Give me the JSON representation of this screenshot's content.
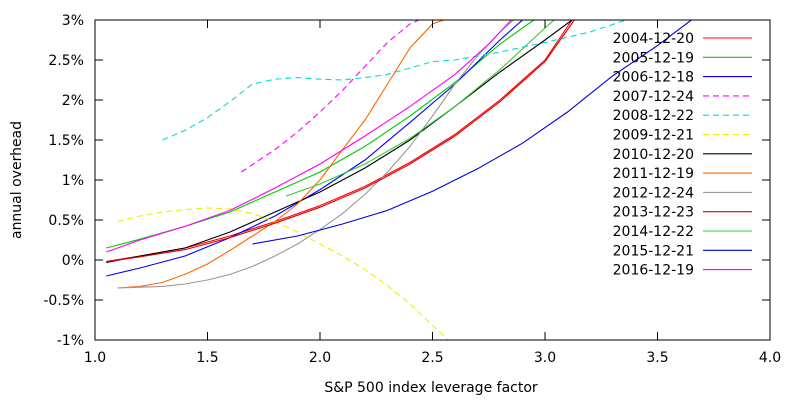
{
  "chart_data": {
    "type": "line",
    "title": "",
    "xlabel": "S&P 500 index leverage factor",
    "ylabel": "annual overhead",
    "xlim": [
      1.0,
      4.0
    ],
    "ylim": [
      -1,
      3
    ],
    "grid": false,
    "legend_position": "top-right",
    "x_ticks": [
      {
        "value": 1.0,
        "label": "1.0"
      },
      {
        "value": 1.5,
        "label": "1.5"
      },
      {
        "value": 2.0,
        "label": "2.0"
      },
      {
        "value": 2.5,
        "label": "2.5"
      },
      {
        "value": 3.0,
        "label": "3.0"
      },
      {
        "value": 3.5,
        "label": "3.5"
      },
      {
        "value": 4.0,
        "label": "4.0"
      }
    ],
    "y_ticks": [
      {
        "value": -1,
        "label": "-1%"
      },
      {
        "value": -0.5,
        "label": "-0.5%"
      },
      {
        "value": 0,
        "label": "0%"
      },
      {
        "value": 0.5,
        "label": "0.5%"
      },
      {
        "value": 1,
        "label": "1%"
      },
      {
        "value": 1.5,
        "label": "1.5%"
      },
      {
        "value": 2,
        "label": "2%"
      },
      {
        "value": 2.5,
        "label": "2.5%"
      },
      {
        "value": 3,
        "label": "3%"
      }
    ],
    "series": [
      {
        "name": "2004-12-20",
        "color": "#ff0000",
        "dash": "solid",
        "x": [
          1.05,
          1.2,
          1.4,
          1.6,
          1.8,
          2.0,
          2.2,
          2.4,
          2.6,
          2.8,
          3.0,
          3.12
        ],
        "y": [
          -0.02,
          0.05,
          0.15,
          0.3,
          0.48,
          0.68,
          0.92,
          1.22,
          1.57,
          2.0,
          2.5,
          3.0
        ]
      },
      {
        "name": "2005-12-19",
        "color": "#00cc00",
        "dash": "solid",
        "x": [
          1.05,
          1.2,
          1.4,
          1.6,
          1.8,
          2.0,
          2.2,
          2.4,
          2.6,
          2.8,
          2.95
        ],
        "y": [
          0.15,
          0.26,
          0.42,
          0.6,
          0.85,
          1.1,
          1.42,
          1.8,
          2.22,
          2.7,
          3.0
        ]
      },
      {
        "name": "2006-12-18",
        "color": "#0000ff",
        "dash": "solid",
        "x": [
          1.05,
          1.2,
          1.4,
          1.6,
          1.8,
          2.0,
          2.2,
          2.4,
          2.6,
          2.8,
          2.9
        ],
        "y": [
          -0.2,
          -0.1,
          0.05,
          0.28,
          0.55,
          0.88,
          1.25,
          1.72,
          2.2,
          2.75,
          3.0
        ]
      },
      {
        "name": "2007-12-24",
        "color": "#ff00ff",
        "dash": "dashed",
        "x": [
          1.65,
          1.8,
          1.9,
          2.0,
          2.1,
          2.2,
          2.3,
          2.4,
          2.44
        ],
        "y": [
          1.1,
          1.38,
          1.6,
          1.85,
          2.12,
          2.42,
          2.72,
          2.95,
          3.0
        ]
      },
      {
        "name": "2008-12-22",
        "color": "#00dddd",
        "dash": "dashed",
        "x": [
          1.3,
          1.4,
          1.5,
          1.6,
          1.7,
          1.8,
          1.9,
          2.0,
          2.1,
          2.2,
          2.3,
          2.4,
          2.5,
          2.6,
          2.8,
          3.0,
          3.2,
          3.36
        ],
        "y": [
          1.5,
          1.62,
          1.78,
          1.98,
          2.2,
          2.26,
          2.28,
          2.26,
          2.25,
          2.28,
          2.32,
          2.4,
          2.48,
          2.5,
          2.6,
          2.72,
          2.85,
          3.0
        ]
      },
      {
        "name": "2009-12-21",
        "color": "#eeee00",
        "dash": "dashed",
        "x": [
          1.1,
          1.2,
          1.3,
          1.4,
          1.5,
          1.6,
          1.7,
          1.8,
          1.9,
          2.0,
          2.1,
          2.2,
          2.3,
          2.4,
          2.5,
          2.57
        ],
        "y": [
          0.48,
          0.55,
          0.6,
          0.63,
          0.65,
          0.64,
          0.58,
          0.48,
          0.35,
          0.2,
          0.05,
          -0.12,
          -0.32,
          -0.55,
          -0.82,
          -1.0
        ]
      },
      {
        "name": "2010-12-20",
        "color": "#000000",
        "dash": "solid",
        "x": [
          1.05,
          1.2,
          1.4,
          1.6,
          1.8,
          2.0,
          2.2,
          2.4,
          2.6,
          2.8,
          3.0,
          3.12
        ],
        "y": [
          -0.03,
          0.05,
          0.15,
          0.35,
          0.6,
          0.85,
          1.15,
          1.5,
          1.92,
          2.35,
          2.75,
          3.0
        ]
      },
      {
        "name": "2011-12-19",
        "color": "#ff6600",
        "dash": "solid",
        "x": [
          1.1,
          1.2,
          1.3,
          1.4,
          1.5,
          1.6,
          1.7,
          1.8,
          1.9,
          2.0,
          2.1,
          2.2,
          2.3,
          2.4,
          2.5,
          2.55
        ],
        "y": [
          -0.35,
          -0.33,
          -0.28,
          -0.18,
          -0.05,
          0.12,
          0.3,
          0.48,
          0.7,
          1.0,
          1.38,
          1.75,
          2.2,
          2.65,
          2.95,
          3.0
        ]
      },
      {
        "name": "2012-12-24",
        "color": "#999999",
        "dash": "solid",
        "x": [
          1.1,
          1.2,
          1.3,
          1.4,
          1.5,
          1.6,
          1.7,
          1.8,
          1.9,
          2.0,
          2.1,
          2.2,
          2.3,
          2.4,
          2.5,
          2.6,
          2.7,
          2.8,
          2.86
        ],
        "y": [
          -0.35,
          -0.34,
          -0.33,
          -0.3,
          -0.25,
          -0.18,
          -0.08,
          0.05,
          0.2,
          0.38,
          0.58,
          0.82,
          1.1,
          1.42,
          1.8,
          2.2,
          2.55,
          2.85,
          3.0
        ]
      },
      {
        "name": "2013-12-23",
        "color": "#dd0000",
        "dash": "solid",
        "x": [
          1.05,
          1.2,
          1.4,
          1.6,
          1.8,
          2.0,
          2.2,
          2.4,
          2.6,
          2.8,
          3.0,
          3.13
        ],
        "y": [
          -0.02,
          0.04,
          0.13,
          0.28,
          0.46,
          0.66,
          0.9,
          1.2,
          1.55,
          1.98,
          2.48,
          3.0
        ]
      },
      {
        "name": "2014-12-22",
        "color": "#33cc33",
        "dash": "solid",
        "x": [
          1.85,
          2.0,
          2.2,
          2.4,
          2.6,
          2.8,
          3.0,
          3.04
        ],
        "y": [
          0.8,
          0.95,
          1.2,
          1.52,
          1.92,
          2.38,
          2.9,
          3.0
        ]
      },
      {
        "name": "2015-12-21",
        "color": "#0000dd",
        "dash": "solid",
        "x": [
          1.7,
          1.9,
          2.1,
          2.3,
          2.5,
          2.7,
          2.9,
          3.1,
          3.3,
          3.5,
          3.65
        ],
        "y": [
          0.2,
          0.3,
          0.45,
          0.62,
          0.86,
          1.14,
          1.46,
          1.85,
          2.3,
          2.68,
          3.0
        ]
      },
      {
        "name": "2016-12-19",
        "color": "#ff00ff",
        "dash": "solid",
        "x": [
          1.05,
          1.2,
          1.4,
          1.6,
          1.8,
          2.0,
          2.2,
          2.4,
          2.6,
          2.75,
          2.85
        ],
        "y": [
          0.1,
          0.25,
          0.42,
          0.62,
          0.9,
          1.2,
          1.55,
          1.92,
          2.32,
          2.7,
          3.0
        ]
      }
    ]
  }
}
